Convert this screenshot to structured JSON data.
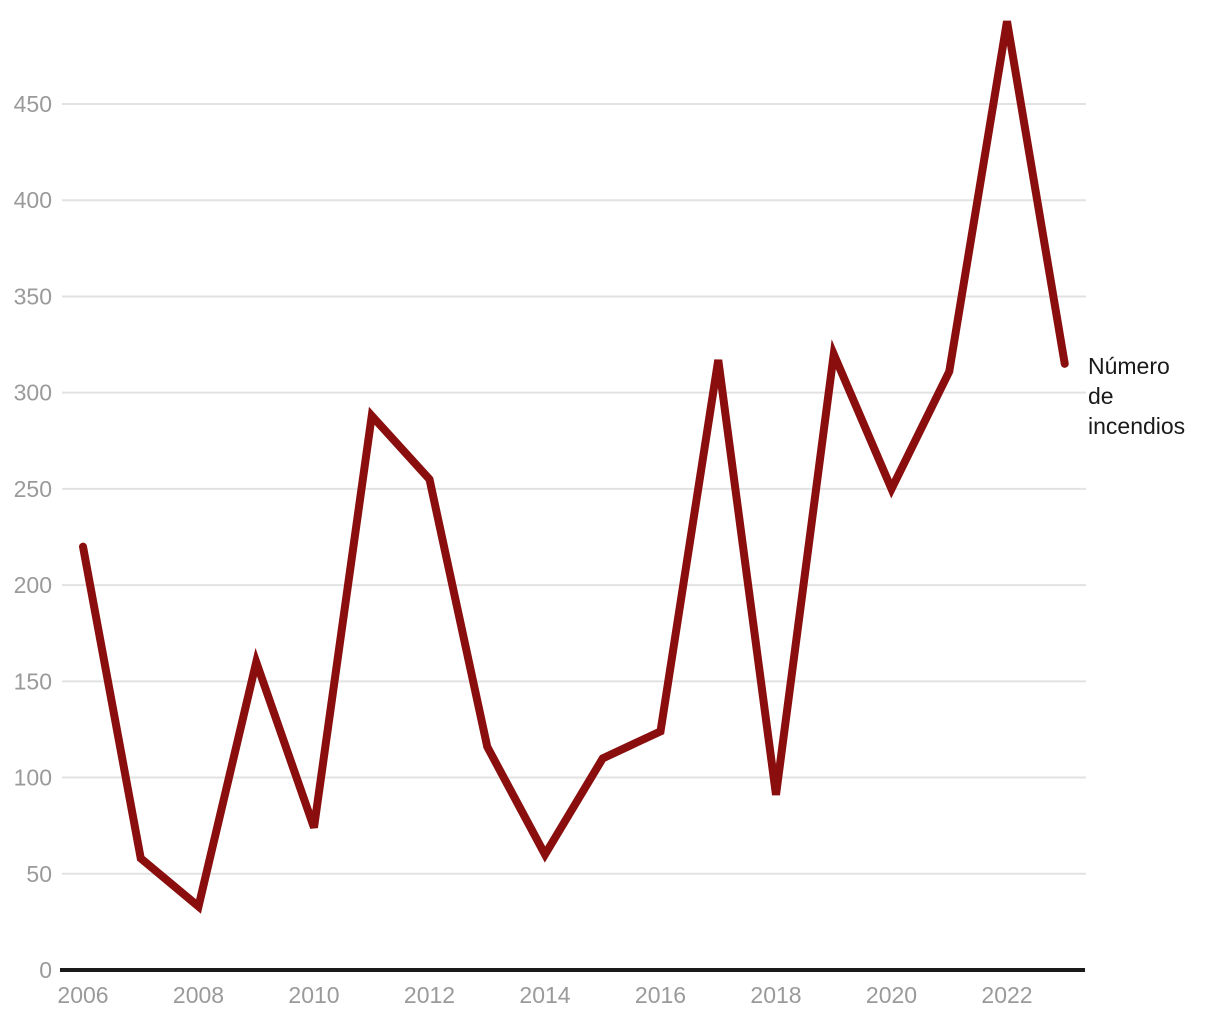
{
  "chart_data": {
    "type": "line",
    "title": "",
    "xlabel": "",
    "ylabel": "",
    "x": [
      2006,
      2007,
      2008,
      2009,
      2010,
      2011,
      2012,
      2013,
      2014,
      2015,
      2016,
      2017,
      2018,
      2019,
      2020,
      2021,
      2022,
      2023
    ],
    "series": [
      {
        "name": "Número de incendios",
        "values": [
          220,
          58,
          33,
          160,
          74,
          288,
          255,
          116,
          60,
          110,
          124,
          317,
          91,
          320,
          250,
          311,
          493,
          315
        ]
      }
    ],
    "ylim": [
      0,
      505
    ],
    "yticks": [
      0,
      50,
      100,
      150,
      200,
      250,
      300,
      350,
      400,
      450
    ],
    "xticks": [
      2006,
      2008,
      2010,
      2012,
      2014,
      2016,
      2018,
      2020,
      2022
    ],
    "grid": true,
    "legend_position": "right-of-last-point"
  },
  "annotation": {
    "text": "Número de incendios",
    "lines": [
      "Número",
      "de",
      "incendios"
    ]
  },
  "colors": {
    "line": "#8B0E0E",
    "gridline": "#e2e2e2",
    "tick_label": "#9a9a9a",
    "axis_line": "#1a1a1a",
    "annotation_text": "#1a1a1a",
    "background": "#ffffff"
  }
}
